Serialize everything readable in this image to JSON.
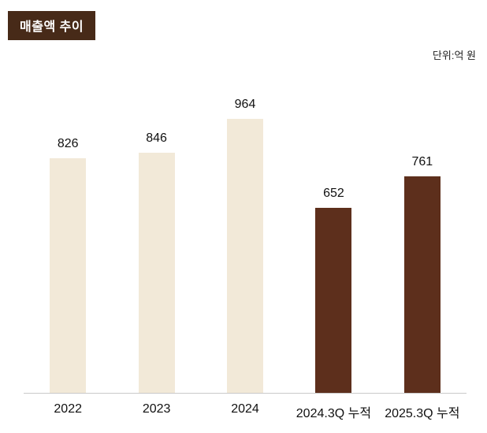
{
  "header": {
    "title": "매출액 추이"
  },
  "unit_label": "단위:억 원",
  "colors": {
    "header_bg": "#472a18",
    "bar_light": "#f2e9d8",
    "bar_dark": "#5d2f1c",
    "axis_line": "#c9c9c9"
  },
  "chart_data": {
    "type": "bar",
    "title": "매출액 추이",
    "unit": "억 원",
    "categories": [
      "2022",
      "2023",
      "2024",
      "2024.3Q 누적",
      "2025.3Q 누적"
    ],
    "values": [
      826,
      846,
      964,
      652,
      761
    ],
    "bar_styles": [
      "light",
      "light",
      "light",
      "dark",
      "dark"
    ],
    "ylim": [
      0,
      1000
    ],
    "grid": false,
    "legend": false,
    "value_labels": true,
    "xlabel": "",
    "ylabel": ""
  }
}
